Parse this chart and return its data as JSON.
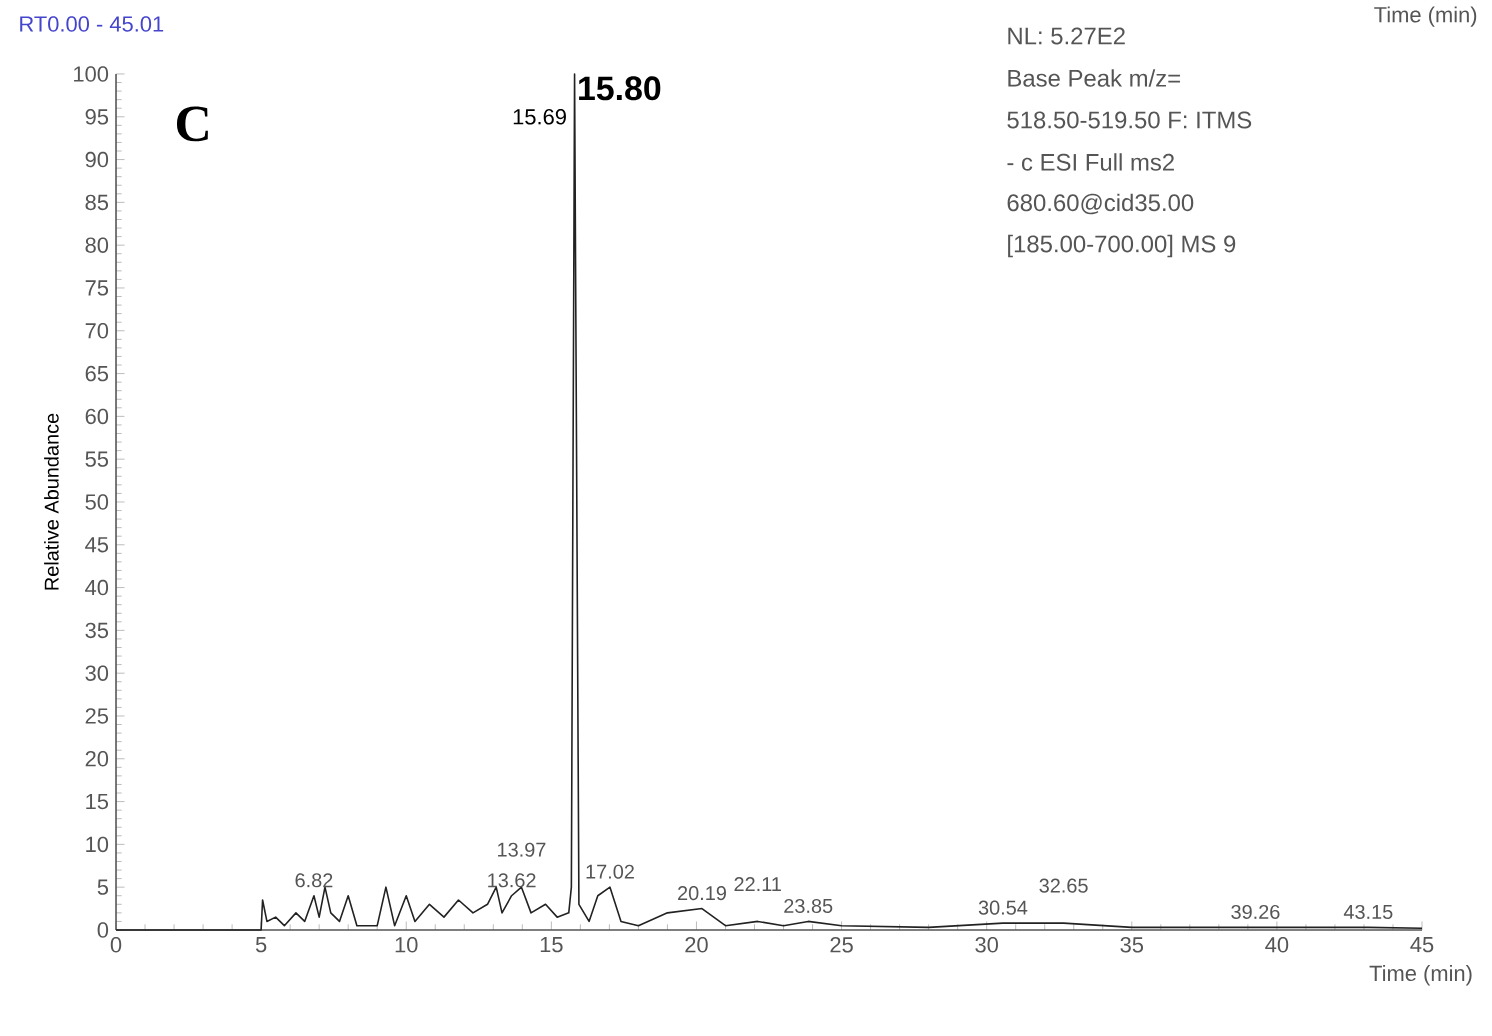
{
  "chart_data": {
    "type": "line",
    "xlabel": "Time (min)",
    "ylabel": "Relative Abundance",
    "xlim": [
      0,
      45
    ],
    "ylim": [
      0,
      100
    ],
    "xticks": [
      0,
      5,
      10,
      15,
      20,
      25,
      30,
      35,
      40,
      45
    ],
    "yticks": [
      0,
      5,
      10,
      15,
      20,
      25,
      30,
      35,
      40,
      45,
      50,
      55,
      60,
      65,
      70,
      75,
      80,
      85,
      90,
      95,
      100
    ],
    "grid": false,
    "series": [
      {
        "color": "#222222",
        "x": [
          0,
          5,
          5.05,
          5.2,
          5.5,
          5.8,
          6.2,
          6.5,
          6.82,
          7.0,
          7.2,
          7.4,
          7.7,
          8.0,
          8.3,
          9.0,
          9.3,
          9.6,
          10.0,
          10.3,
          10.8,
          11.3,
          11.8,
          12.3,
          12.8,
          13.1,
          13.3,
          13.63,
          13.97,
          14.3,
          14.8,
          15.2,
          15.6,
          15.69,
          15.8,
          15.95,
          16.3,
          16.6,
          17.02,
          17.4,
          18.0,
          19.0,
          20.19,
          21.0,
          22.11,
          23.0,
          23.85,
          25,
          28,
          30.56,
          32.65,
          35,
          39.26,
          43.15,
          45
        ],
        "values": [
          0,
          0,
          3.5,
          1,
          1.5,
          0.5,
          2,
          1,
          4,
          1.5,
          5,
          2,
          1,
          4,
          0.5,
          0.5,
          5,
          0.5,
          4,
          1,
          3,
          1.5,
          3.5,
          2,
          3,
          5,
          2,
          4,
          5,
          2,
          3,
          1.5,
          2,
          5,
          100,
          3,
          1,
          4,
          5,
          1,
          0.5,
          2,
          2.5,
          0.5,
          1,
          0.5,
          1,
          0.5,
          0.3,
          0.8,
          0.8,
          0.3,
          0.3,
          0.3,
          0.2
        ]
      }
    ],
    "annotations": [
      "RT0.00 - 45.01",
      "C",
      "NL: 5.27E2",
      "Base Peak m/z=",
      "518.50-519.50 F: ITMS",
      "- c ESI Full ms2",
      "680.60@cid35.00",
      "[185.00-700.00]  MS 9",
      "Time (min)",
      {
        "text": "15.80",
        "x": 15.8,
        "y": 100
      },
      {
        "text": "15.69",
        "x": 15.69,
        "y": 95
      },
      {
        "text": "6.82",
        "x": 6.82,
        "y": 4
      },
      {
        "text": "13.62",
        "x": 13.63,
        "y": 4
      },
      {
        "text": "13.97",
        "x": 13.97,
        "y": 5
      },
      {
        "text": "17.02",
        "x": 17.02,
        "y": 5
      },
      {
        "text": "20.19",
        "x": 20.19,
        "y": 2.5
      },
      {
        "text": "22.11",
        "x": 22.11,
        "y": 1
      },
      {
        "text": "23.85",
        "x": 23.85,
        "y": 1
      },
      {
        "text": "30.54",
        "x": 30.56,
        "y": 0.8
      },
      {
        "text": "32.65",
        "x": 32.65,
        "y": 0.8
      },
      {
        "text": "39.26",
        "x": 39.26,
        "y": 0.3
      },
      {
        "text": "43.15",
        "x": 43.15,
        "y": 0.3
      }
    ]
  }
}
